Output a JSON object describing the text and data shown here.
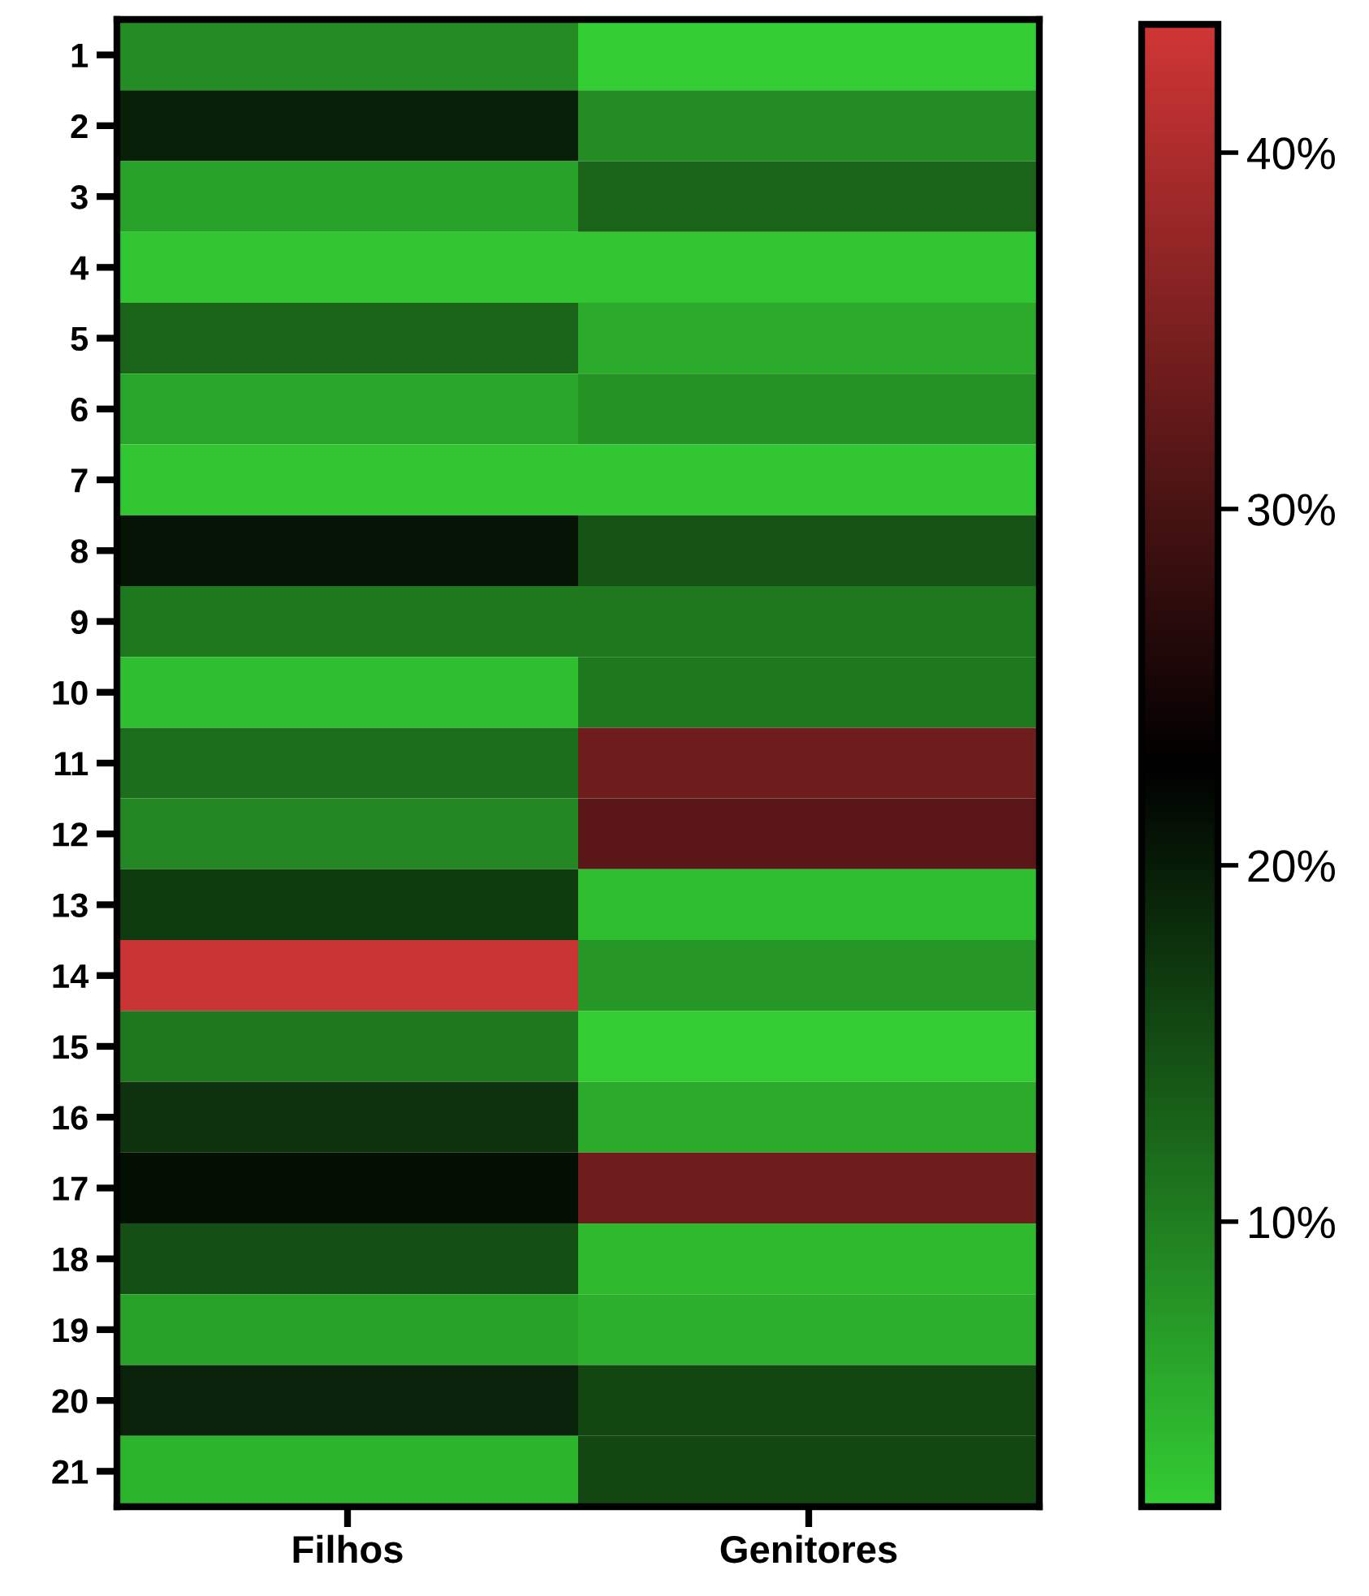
{
  "chart_data": {
    "type": "heatmap",
    "categories": [
      "Filhos",
      "Genitores"
    ],
    "y_categories": [
      "1",
      "2",
      "3",
      "4",
      "5",
      "6",
      "7",
      "8",
      "9",
      "10",
      "11",
      "12",
      "13",
      "14",
      "15",
      "16",
      "17",
      "18",
      "19",
      "20",
      "21"
    ],
    "cells": [
      [
        8.5,
        2
      ],
      [
        19.7,
        8.5
      ],
      [
        6.5,
        12.6
      ],
      [
        2.5,
        2.5
      ],
      [
        12.6,
        5.5
      ],
      [
        6,
        8
      ],
      [
        2.5,
        2.5
      ],
      [
        20.7,
        14.2
      ],
      [
        10.5,
        10.5
      ],
      [
        3.5,
        10.5
      ],
      [
        11.6,
        33.8
      ],
      [
        9,
        31.8
      ],
      [
        16.7,
        3.5
      ],
      [
        43,
        7.5
      ],
      [
        10.5,
        2
      ],
      [
        17.7,
        5.5
      ],
      [
        21.3,
        33.8
      ],
      [
        14.7,
        4
      ],
      [
        6.5,
        5
      ],
      [
        19.3,
        15.5
      ],
      [
        4.5,
        15.5
      ]
    ],
    "colors": [
      "#33cc33",
      "#000000",
      "#d03535"
    ],
    "clim": [
      2,
      43.6
    ],
    "cticks": [
      {
        "value": 10,
        "label": "10%"
      },
      {
        "value": 20,
        "label": "20%"
      },
      {
        "value": 30,
        "label": "30%"
      },
      {
        "value": 40,
        "label": "40%"
      }
    ]
  }
}
